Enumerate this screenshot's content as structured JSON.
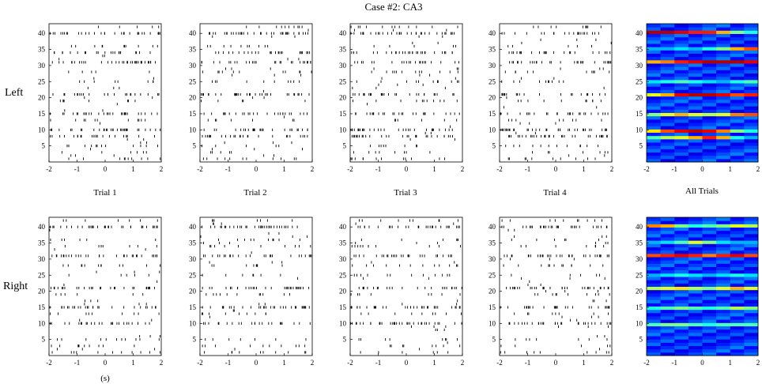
{
  "figure": {
    "title": "Case #2: CA3",
    "row_labels": [
      "Left",
      "Right"
    ],
    "column_captions": [
      "Trial 1",
      "Trial 2",
      "Trial 3",
      "Trial 4",
      "All Trials"
    ],
    "x_unit_label": "(s)"
  },
  "chart_data": {
    "type": "raster",
    "title": "Case #2: CA3",
    "x_ticks": [
      -2,
      -1,
      0,
      1,
      2
    ],
    "x_tick_labels": [
      "-2",
      "-1",
      "0",
      "1",
      "2"
    ],
    "y_ticks": [
      5,
      10,
      15,
      20,
      25,
      30,
      35,
      40
    ],
    "y_tick_labels": [
      "5",
      "10",
      "15",
      "20",
      "25",
      "30",
      "35",
      "40"
    ],
    "xlim": [
      -2,
      2
    ],
    "ylim": [
      0,
      43
    ],
    "neuron_count": 42,
    "conditions": [
      "Left",
      "Right"
    ],
    "trials": [
      "Trial 1",
      "Trial 2",
      "Trial 3",
      "Trial 4"
    ],
    "raster_density": {
      "Left": {
        "high_rate_neurons": [
          31,
          21,
          15,
          10,
          8,
          40,
          34
        ],
        "medium_rate_neurons": [
          42,
          36,
          28,
          25,
          19,
          13,
          5,
          3,
          1
        ]
      },
      "Right": {
        "high_rate_neurons": [
          31,
          21,
          15,
          10,
          40
        ],
        "medium_rate_neurons": [
          42,
          36,
          34,
          28,
          25,
          19,
          13,
          5,
          3,
          1
        ]
      }
    },
    "heatmap": {
      "label": "All Trials",
      "colormap": "jet",
      "Left": {
        "rows": [
          {
            "neuron": 40,
            "level": [
              0.95,
              0.95,
              0.9,
              0.85,
              0.85,
              0.7,
              0.5,
              0.4
            ]
          },
          {
            "neuron": 31,
            "level": [
              0.7,
              0.75,
              0.85,
              0.9,
              0.95,
              0.95,
              0.95,
              0.9
            ]
          },
          {
            "neuron": 21,
            "level": [
              0.6,
              0.7,
              0.9,
              0.95,
              0.95,
              0.9,
              0.8,
              0.85
            ]
          },
          {
            "neuron": 15,
            "level": [
              0.5,
              0.6,
              0.7,
              0.6,
              0.55,
              0.6,
              0.75,
              0.8
            ]
          },
          {
            "neuron": 10,
            "level": [
              0.65,
              0.8,
              0.9,
              0.95,
              0.9,
              0.75,
              0.5,
              0.4
            ]
          },
          {
            "neuron": 8,
            "level": [
              0.45,
              0.55,
              0.6,
              0.7,
              0.85,
              0.7,
              0.4,
              0.3
            ]
          },
          {
            "neuron": 35,
            "level": [
              0.3,
              0.3,
              0.35,
              0.3,
              0.4,
              0.5,
              0.7,
              0.8
            ]
          },
          {
            "neuron": 25,
            "level": [
              0.35,
              0.4,
              0.45,
              0.4,
              0.35,
              0.3,
              0.4,
              0.45
            ]
          }
        ]
      },
      "Right": {
        "rows": [
          {
            "neuron": 40,
            "level": [
              0.75,
              0.7,
              0.5,
              0.4,
              0.45,
              0.5,
              0.6,
              0.55
            ]
          },
          {
            "neuron": 31,
            "level": [
              0.8,
              0.85,
              0.9,
              0.85,
              0.75,
              0.85,
              0.9,
              0.8
            ]
          },
          {
            "neuron": 35,
            "level": [
              0.3,
              0.35,
              0.45,
              0.6,
              0.5,
              0.35,
              0.3,
              0.3
            ]
          },
          {
            "neuron": 21,
            "level": [
              0.55,
              0.6,
              0.65,
              0.55,
              0.5,
              0.6,
              0.7,
              0.6
            ]
          },
          {
            "neuron": 15,
            "level": [
              0.4,
              0.45,
              0.5,
              0.45,
              0.4,
              0.45,
              0.55,
              0.5
            ]
          },
          {
            "neuron": 10,
            "level": [
              0.45,
              0.5,
              0.5,
              0.45,
              0.4,
              0.45,
              0.45,
              0.45
            ]
          },
          {
            "neuron": 25,
            "level": [
              0.3,
              0.35,
              0.4,
              0.35,
              0.3,
              0.35,
              0.4,
              0.35
            ]
          }
        ]
      }
    }
  }
}
